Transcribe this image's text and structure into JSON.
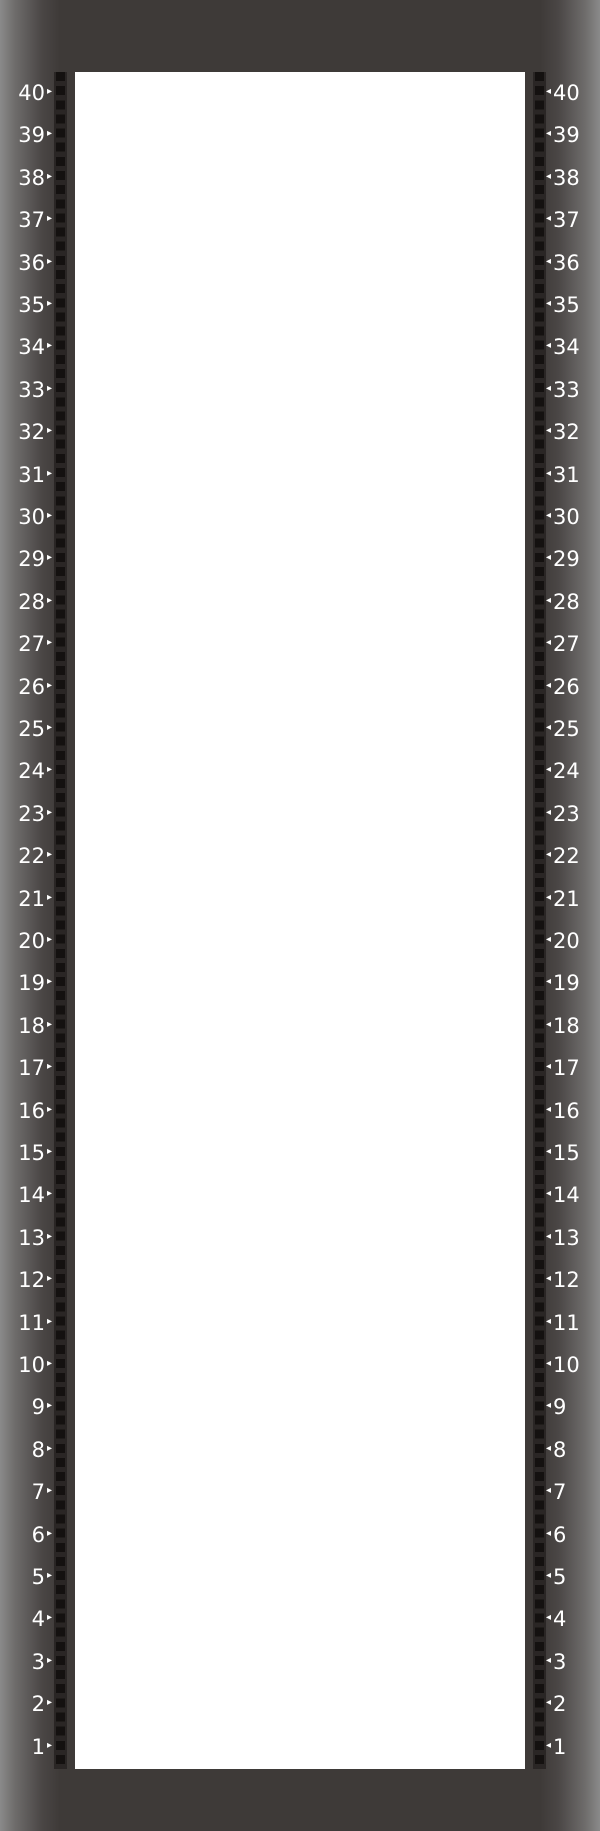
{
  "rack": {
    "total_units": 40,
    "background_color": "#3e3a38",
    "mount_area_color": "#ffffff",
    "rail_color": "#2a2625",
    "label_color": "#ffffff",
    "left_arrow_glyph": "▸",
    "right_arrow_glyph": "◂",
    "left_labels": [
      "40",
      "39",
      "38",
      "37",
      "36",
      "35",
      "34",
      "33",
      "32",
      "31",
      "30",
      "29",
      "28",
      "27",
      "26",
      "25",
      "24",
      "23",
      "22",
      "21",
      "20",
      "19",
      "18",
      "17",
      "16",
      "15",
      "14",
      "13",
      "12",
      "11",
      "10",
      "9",
      "8",
      "7",
      "6",
      "5",
      "4",
      "3",
      "2",
      "1"
    ],
    "right_labels": [
      "40",
      "39",
      "38",
      "37",
      "36",
      "35",
      "34",
      "33",
      "32",
      "31",
      "30",
      "29",
      "28",
      "27",
      "26",
      "25",
      "24",
      "23",
      "22",
      "21",
      "20",
      "19",
      "18",
      "17",
      "16",
      "15",
      "14",
      "13",
      "12",
      "11",
      "10",
      "9",
      "8",
      "7",
      "6",
      "5",
      "4",
      "3",
      "2",
      "1"
    ]
  }
}
